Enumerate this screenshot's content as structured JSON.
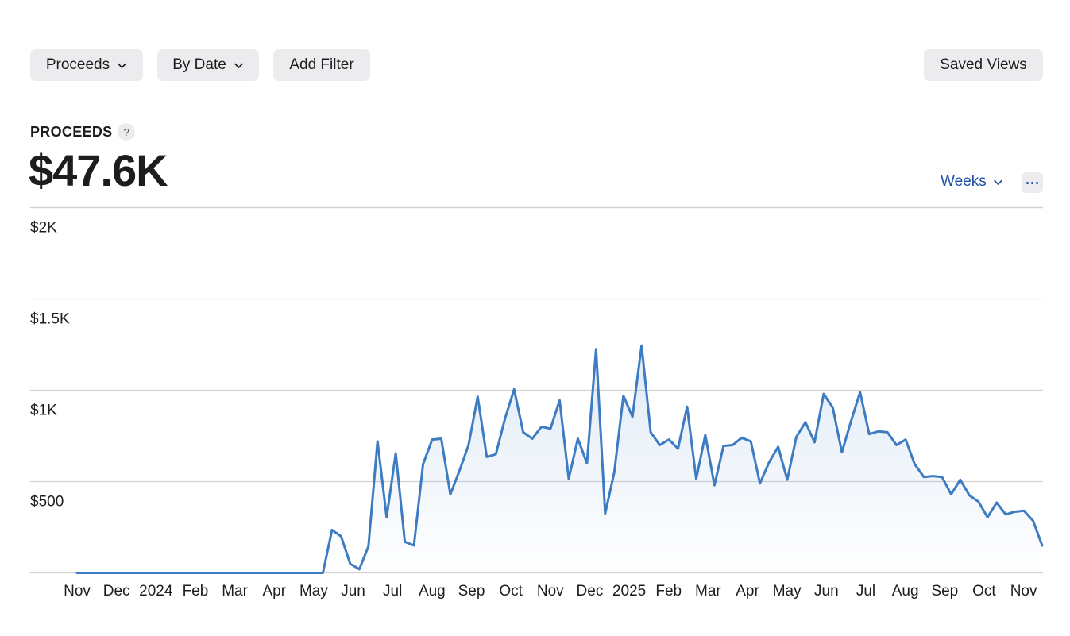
{
  "toolbar": {
    "proceeds_label": "Proceeds",
    "bydate_label": "By Date",
    "addfilter_label": "Add Filter",
    "savedviews_label": "Saved Views"
  },
  "metric": {
    "label": "PROCEEDS",
    "help": "?",
    "value": "$47.6K"
  },
  "controls": {
    "granularity": "Weeks"
  },
  "colors": {
    "line": "#3d7cc3",
    "accent": "#1f4fa3",
    "grid": "#d2d2d2"
  },
  "chart_data": {
    "type": "area",
    "title": "",
    "xlabel": "",
    "ylabel": "",
    "ylim": [
      0,
      2000
    ],
    "grid": true,
    "y_ticks": [
      {
        "value": 2000,
        "label": "$2K"
      },
      {
        "value": 1500,
        "label": "$1.5K"
      },
      {
        "value": 1000,
        "label": "$1K"
      },
      {
        "value": 500,
        "label": "$500"
      }
    ],
    "x_ticks": [
      "Nov",
      "Dec",
      "2024",
      "Feb",
      "Mar",
      "Apr",
      "May",
      "Jun",
      "Jul",
      "Aug",
      "Sep",
      "Oct",
      "Nov",
      "Dec",
      "2025",
      "Feb",
      "Mar",
      "Apr",
      "May",
      "Jun",
      "Jul",
      "Aug",
      "Sep",
      "Oct",
      "Nov"
    ],
    "series": [
      {
        "values": [
          0,
          0,
          0,
          0,
          0,
          0,
          0,
          0,
          0,
          0,
          0,
          0,
          0,
          0,
          0,
          0,
          0,
          0,
          0,
          0,
          0,
          0,
          0,
          0,
          0,
          0,
          0,
          0,
          235,
          200,
          50,
          20,
          145,
          720,
          305,
          655,
          170,
          150,
          595,
          730,
          735,
          430,
          560,
          700,
          965,
          635,
          650,
          845,
          1005,
          770,
          735,
          800,
          790,
          945,
          515,
          735,
          600,
          1225,
          325,
          550,
          970,
          855,
          1245,
          770,
          700,
          730,
          680,
          910,
          515,
          755,
          480,
          695,
          700,
          740,
          720,
          490,
          605,
          690,
          510,
          745,
          825,
          715,
          980,
          905,
          660,
          830,
          990,
          760,
          775,
          770,
          700,
          730,
          595,
          525,
          530,
          525,
          430,
          510,
          425,
          390,
          305,
          385,
          320,
          335,
          340,
          285,
          150
        ]
      }
    ]
  }
}
